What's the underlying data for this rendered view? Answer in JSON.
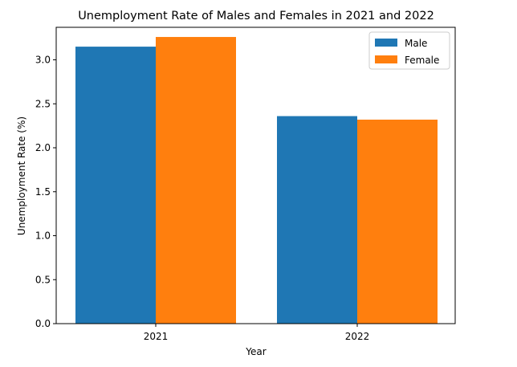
{
  "chart_data": {
    "type": "bar",
    "title": "Unemployment Rate of Males and Females in 2021 and 2022",
    "xlabel": "Year",
    "ylabel": "Unemployment Rate (%)",
    "categories": [
      "2021",
      "2022"
    ],
    "series": [
      {
        "name": "Male",
        "values": [
          3.15,
          2.36
        ],
        "color": "#1f77b4"
      },
      {
        "name": "Female",
        "values": [
          3.26,
          2.32
        ],
        "color": "#ff7f0e"
      }
    ],
    "ylim": [
      0,
      3.37
    ],
    "yticks": [
      "0.0",
      "0.5",
      "1.0",
      "1.5",
      "2.0",
      "2.5",
      "3.0"
    ],
    "grid": false,
    "legend_position": "top-right"
  }
}
